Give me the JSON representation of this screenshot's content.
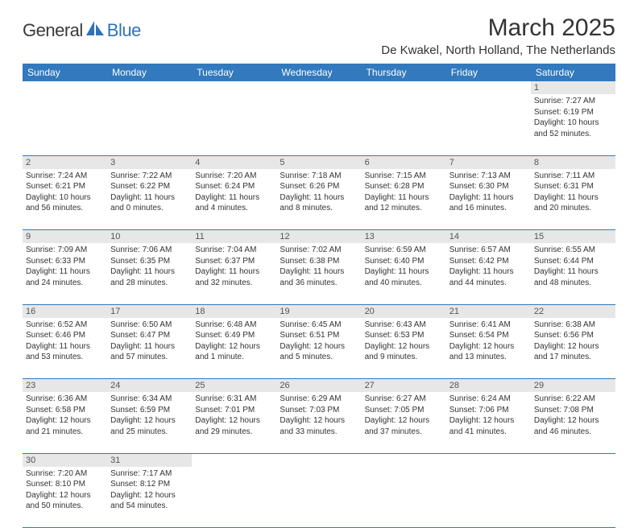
{
  "logo": {
    "text1": "General",
    "text2": "Blue"
  },
  "title": "March 2025",
  "location": "De Kwakel, North Holland, The Netherlands",
  "colors": {
    "header_bg": "#3279bd",
    "header_text": "#ffffff",
    "daynum_bg": "#e7e7e7",
    "daynum_text": "#555555",
    "border": "#3279bd",
    "body_text": "#333333",
    "logo_blue": "#2d73b9"
  },
  "typography": {
    "title_fontsize": 30,
    "location_fontsize": 15,
    "header_fontsize": 12,
    "daynum_fontsize": 11,
    "cell_fontsize": 10
  },
  "headers": [
    "Sunday",
    "Monday",
    "Tuesday",
    "Wednesday",
    "Thursday",
    "Friday",
    "Saturday"
  ],
  "weeks": [
    [
      null,
      null,
      null,
      null,
      null,
      null,
      {
        "n": "1",
        "sunrise": "7:27 AM",
        "sunset": "6:19 PM",
        "day_h": "10",
        "day_m": "52"
      }
    ],
    [
      {
        "n": "2",
        "sunrise": "7:24 AM",
        "sunset": "6:21 PM",
        "day_h": "10",
        "day_m": "56"
      },
      {
        "n": "3",
        "sunrise": "7:22 AM",
        "sunset": "6:22 PM",
        "day_h": "11",
        "day_m": "0"
      },
      {
        "n": "4",
        "sunrise": "7:20 AM",
        "sunset": "6:24 PM",
        "day_h": "11",
        "day_m": "4"
      },
      {
        "n": "5",
        "sunrise": "7:18 AM",
        "sunset": "6:26 PM",
        "day_h": "11",
        "day_m": "8"
      },
      {
        "n": "6",
        "sunrise": "7:15 AM",
        "sunset": "6:28 PM",
        "day_h": "11",
        "day_m": "12"
      },
      {
        "n": "7",
        "sunrise": "7:13 AM",
        "sunset": "6:30 PM",
        "day_h": "11",
        "day_m": "16"
      },
      {
        "n": "8",
        "sunrise": "7:11 AM",
        "sunset": "6:31 PM",
        "day_h": "11",
        "day_m": "20"
      }
    ],
    [
      {
        "n": "9",
        "sunrise": "7:09 AM",
        "sunset": "6:33 PM",
        "day_h": "11",
        "day_m": "24"
      },
      {
        "n": "10",
        "sunrise": "7:06 AM",
        "sunset": "6:35 PM",
        "day_h": "11",
        "day_m": "28"
      },
      {
        "n": "11",
        "sunrise": "7:04 AM",
        "sunset": "6:37 PM",
        "day_h": "11",
        "day_m": "32"
      },
      {
        "n": "12",
        "sunrise": "7:02 AM",
        "sunset": "6:38 PM",
        "day_h": "11",
        "day_m": "36"
      },
      {
        "n": "13",
        "sunrise": "6:59 AM",
        "sunset": "6:40 PM",
        "day_h": "11",
        "day_m": "40"
      },
      {
        "n": "14",
        "sunrise": "6:57 AM",
        "sunset": "6:42 PM",
        "day_h": "11",
        "day_m": "44"
      },
      {
        "n": "15",
        "sunrise": "6:55 AM",
        "sunset": "6:44 PM",
        "day_h": "11",
        "day_m": "48"
      }
    ],
    [
      {
        "n": "16",
        "sunrise": "6:52 AM",
        "sunset": "6:46 PM",
        "day_h": "11",
        "day_m": "53"
      },
      {
        "n": "17",
        "sunrise": "6:50 AM",
        "sunset": "6:47 PM",
        "day_h": "11",
        "day_m": "57"
      },
      {
        "n": "18",
        "sunrise": "6:48 AM",
        "sunset": "6:49 PM",
        "day_h": "12",
        "day_m": "1"
      },
      {
        "n": "19",
        "sunrise": "6:45 AM",
        "sunset": "6:51 PM",
        "day_h": "12",
        "day_m": "5"
      },
      {
        "n": "20",
        "sunrise": "6:43 AM",
        "sunset": "6:53 PM",
        "day_h": "12",
        "day_m": "9"
      },
      {
        "n": "21",
        "sunrise": "6:41 AM",
        "sunset": "6:54 PM",
        "day_h": "12",
        "day_m": "13"
      },
      {
        "n": "22",
        "sunrise": "6:38 AM",
        "sunset": "6:56 PM",
        "day_h": "12",
        "day_m": "17"
      }
    ],
    [
      {
        "n": "23",
        "sunrise": "6:36 AM",
        "sunset": "6:58 PM",
        "day_h": "12",
        "day_m": "21"
      },
      {
        "n": "24",
        "sunrise": "6:34 AM",
        "sunset": "6:59 PM",
        "day_h": "12",
        "day_m": "25"
      },
      {
        "n": "25",
        "sunrise": "6:31 AM",
        "sunset": "7:01 PM",
        "day_h": "12",
        "day_m": "29"
      },
      {
        "n": "26",
        "sunrise": "6:29 AM",
        "sunset": "7:03 PM",
        "day_h": "12",
        "day_m": "33"
      },
      {
        "n": "27",
        "sunrise": "6:27 AM",
        "sunset": "7:05 PM",
        "day_h": "12",
        "day_m": "37"
      },
      {
        "n": "28",
        "sunrise": "6:24 AM",
        "sunset": "7:06 PM",
        "day_h": "12",
        "day_m": "41"
      },
      {
        "n": "29",
        "sunrise": "6:22 AM",
        "sunset": "7:08 PM",
        "day_h": "12",
        "day_m": "46"
      }
    ],
    [
      {
        "n": "30",
        "sunrise": "7:20 AM",
        "sunset": "8:10 PM",
        "day_h": "12",
        "day_m": "50"
      },
      {
        "n": "31",
        "sunrise": "7:17 AM",
        "sunset": "8:12 PM",
        "day_h": "12",
        "day_m": "54"
      },
      null,
      null,
      null,
      null,
      null
    ]
  ],
  "labels": {
    "sunrise": "Sunrise:",
    "sunset": "Sunset:",
    "daylight_prefix": "Daylight:",
    "hours_word": "hours",
    "and_word": "and",
    "minutes_word": "minutes.",
    "minute_word": "minute."
  }
}
